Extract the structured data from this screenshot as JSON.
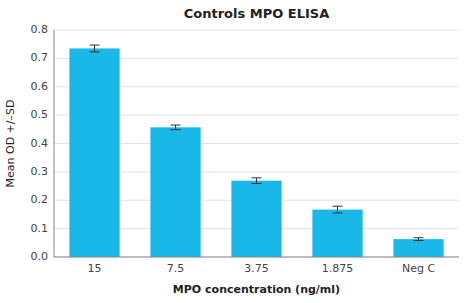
{
  "chart_data": {
    "type": "bar",
    "title": "Controls MPO ELISA",
    "xlabel": "MPO concentration (ng/ml)",
    "ylabel": "Mean OD +/–SD",
    "categories": [
      "15",
      "7.5",
      "3.75",
      "1.875",
      "Neg C"
    ],
    "values": [
      0.735,
      0.457,
      0.269,
      0.167,
      0.063
    ],
    "errors": [
      0.012,
      0.008,
      0.01,
      0.012,
      0.005
    ],
    "color": "#1AB8E8",
    "ylim": [
      0,
      0.8
    ],
    "yticks": [
      {
        "value": 0,
        "label": "0.0"
      },
      0.1,
      0.2,
      0.3,
      0.4,
      0.5,
      0.6,
      0.7,
      0.8
    ],
    "grid": true
  }
}
